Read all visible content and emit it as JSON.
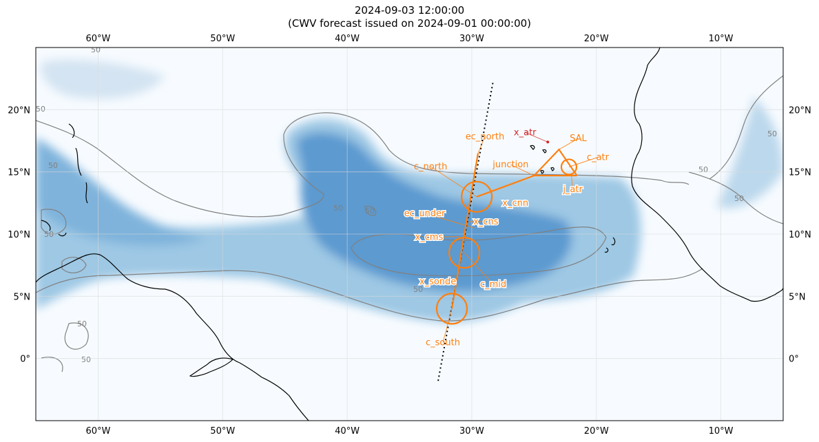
{
  "title": {
    "line1": "2024-09-03 12:00:00",
    "line2": "(CWV forecast issued on 2024-09-01 00:00:00)"
  },
  "axes": {
    "lon_range": [
      -65,
      -5
    ],
    "lat_range": [
      -5,
      25
    ],
    "lon_ticks": [
      {
        "value": -60,
        "label": "60°W"
      },
      {
        "value": -50,
        "label": "50°W"
      },
      {
        "value": -40,
        "label": "40°W"
      },
      {
        "value": -30,
        "label": "30°W"
      },
      {
        "value": -20,
        "label": "20°W"
      },
      {
        "value": -10,
        "label": "10°W"
      }
    ],
    "lat_ticks": [
      {
        "value": 20,
        "label": "20°N"
      },
      {
        "value": 15,
        "label": "15°N"
      },
      {
        "value": 10,
        "label": "10°N"
      },
      {
        "value": 5,
        "label": "5°N"
      },
      {
        "value": 0,
        "label": "0°"
      }
    ],
    "grid": true
  },
  "colors": {
    "cwv_low": "#f7fbff",
    "cwv_high": "#4a8cc6",
    "contour": "#808080",
    "flight": "#ff7f0e",
    "atr": "#d62728",
    "coast": "#000000",
    "track": "#000000"
  },
  "contours": {
    "level_label": "50"
  },
  "flight": {
    "features": [
      {
        "id": "c_north",
        "label": "c_north",
        "lon": -29.6,
        "lat": 13.0,
        "kind": "circle"
      },
      {
        "id": "c_mid",
        "label": "c_mid",
        "lon": -30.6,
        "lat": 8.5,
        "kind": "circle"
      },
      {
        "id": "c_south",
        "label": "c_south",
        "lon": -31.6,
        "lat": 4.0,
        "kind": "circle"
      },
      {
        "id": "c_atr",
        "label": "c_atr",
        "lon": -22.2,
        "lat": 15.4,
        "kind": "circle"
      },
      {
        "id": "ec_north",
        "label": "ec_north",
        "lon": -29.5,
        "lat": 16.5,
        "kind": "point"
      },
      {
        "id": "ec_under",
        "label": "ec_under",
        "lon": -29.8,
        "lat": 10.5,
        "kind": "point"
      },
      {
        "id": "junction",
        "label": "junction",
        "lon": -25.0,
        "lat": 14.7,
        "kind": "point"
      },
      {
        "id": "SAL",
        "label": "SAL",
        "lon": -23.0,
        "lat": 16.8,
        "kind": "point"
      },
      {
        "id": "j_atr",
        "label": "j_atr",
        "lon": -22.0,
        "lat": 14.7,
        "kind": "point"
      },
      {
        "id": "x_cnn",
        "label": "x_cnn",
        "lon": -27.0,
        "lat": 12.5,
        "kind": "point"
      },
      {
        "id": "x_cns",
        "label": "x_cns",
        "lon": -30.2,
        "lat": 11.0,
        "kind": "point"
      },
      {
        "id": "x_cms",
        "label": "x_cms",
        "lon": -31.0,
        "lat": 9.8,
        "kind": "point"
      },
      {
        "id": "x_sonde",
        "label": "x_sonde",
        "lon": -31.4,
        "lat": 6.3,
        "kind": "point"
      },
      {
        "id": "x_atr",
        "label": "x_atr",
        "lon": -23.9,
        "lat": 17.4,
        "kind": "atr"
      }
    ],
    "track_note": "dotted line = satellite track"
  }
}
